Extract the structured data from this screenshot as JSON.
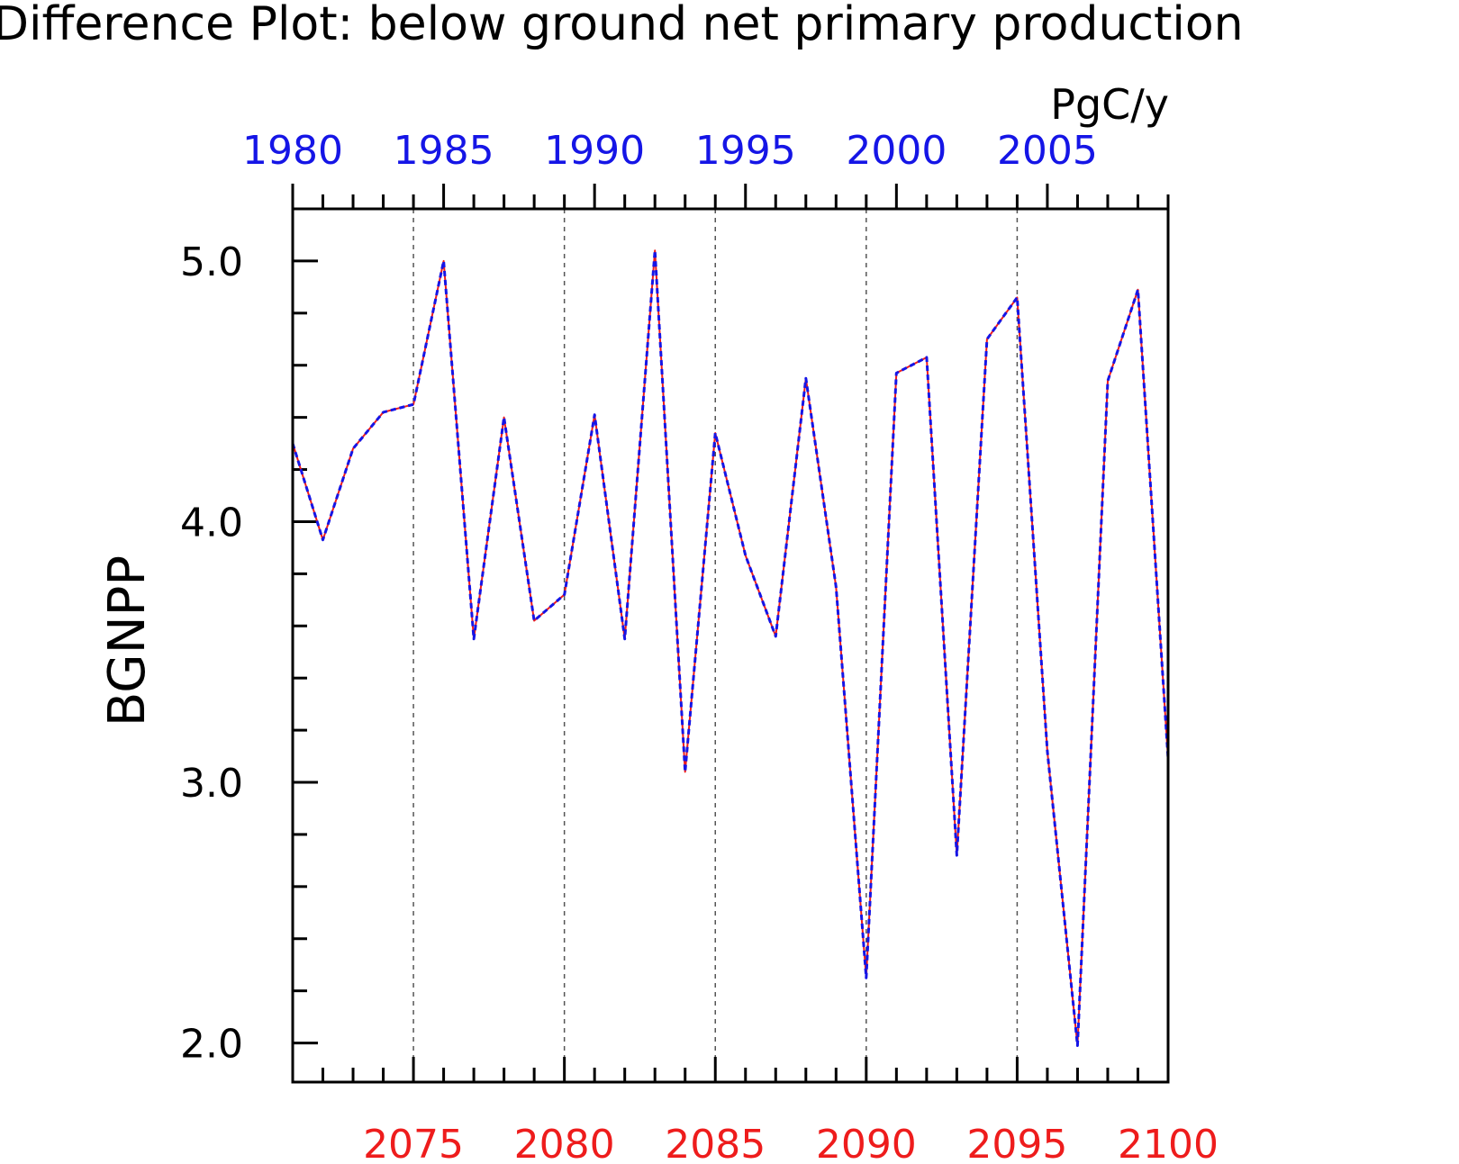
{
  "chart_data": {
    "type": "line",
    "title": "Difference Plot: below ground net primary production",
    "units": "PgC/y",
    "ylabel": "BGNPP",
    "ylim": [
      1.85,
      5.2
    ],
    "y_ticks": [
      2.0,
      3.0,
      4.0,
      5.0
    ],
    "y_tick_labels": [
      "2.0",
      "3.0",
      "4.0",
      "5.0"
    ],
    "x_bottom": {
      "range": [
        2071,
        2100
      ],
      "ticks": [
        2075,
        2080,
        2085,
        2090,
        2095,
        2100
      ],
      "labels": [
        "2075",
        "2080",
        "2085",
        "2090",
        "2095",
        "2100"
      ],
      "color": "#ee1c1c"
    },
    "x_top": {
      "range": [
        1980,
        2009
      ],
      "ticks": [
        1980,
        1985,
        1990,
        1995,
        2000,
        2005
      ],
      "labels": [
        "1980",
        "1985",
        "1990",
        "1995",
        "2000",
        "2005"
      ],
      "color": "#1515e6"
    },
    "grid": "vertical dashed at major bottom ticks",
    "x": [
      2071,
      2072,
      2073,
      2074,
      2075,
      2076,
      2077,
      2078,
      2079,
      2080,
      2081,
      2082,
      2083,
      2084,
      2085,
      2086,
      2087,
      2088,
      2089,
      2090,
      2091,
      2092,
      2093,
      2094,
      2095,
      2096,
      2097,
      2098,
      2099,
      2100
    ],
    "series": [
      {
        "color": "#ee1c1c",
        "style": "solid",
        "values": [
          4.3,
          3.93,
          4.28,
          4.42,
          4.45,
          5.0,
          3.55,
          4.4,
          3.62,
          3.72,
          4.41,
          3.55,
          5.04,
          3.04,
          4.34,
          3.87,
          3.56,
          4.55,
          3.75,
          2.25,
          4.57,
          4.63,
          2.72,
          4.7,
          4.86,
          3.12,
          1.99,
          4.54,
          4.89,
          3.09
        ]
      },
      {
        "color": "#1515e6",
        "style": "dashed",
        "values": [
          4.3,
          3.93,
          4.28,
          4.42,
          4.45,
          5.0,
          3.55,
          4.4,
          3.62,
          3.72,
          4.41,
          3.55,
          5.04,
          3.04,
          4.34,
          3.87,
          3.56,
          4.55,
          3.75,
          2.25,
          4.57,
          4.63,
          2.72,
          4.7,
          4.86,
          3.12,
          1.99,
          4.54,
          4.89,
          3.09
        ]
      }
    ]
  }
}
